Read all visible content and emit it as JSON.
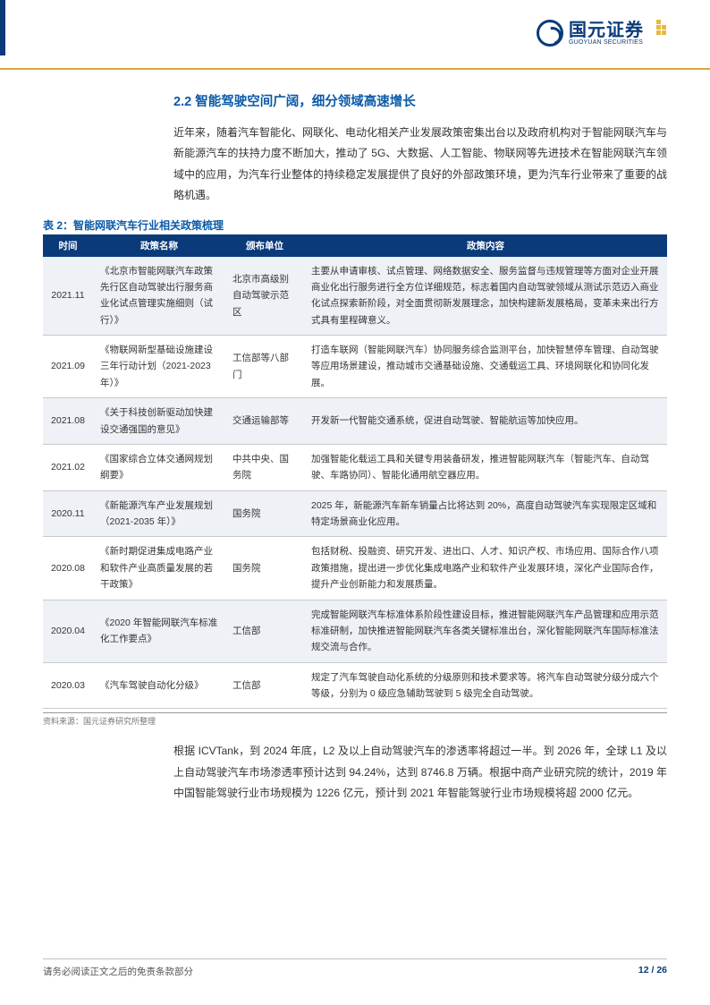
{
  "brand": {
    "cn": "国元证券",
    "en": "GUOYUAN SECURITIES"
  },
  "section": {
    "number": "2.2",
    "title": "智能驾驶空间广阔，细分领域高速增长",
    "intro": "近年来，随着汽车智能化、网联化、电动化相关产业发展政策密集出台以及政府机构对于智能网联汽车与新能源汽车的扶持力度不断加大，推动了 5G、大数据、人工智能、物联网等先进技术在智能网联汽车领域中的应用，为汽车行业整体的持续稳定发展提供了良好的外部政策环境，更为汽车行业带来了重要的战略机遇。"
  },
  "table": {
    "caption": "表 2：智能网联汽车行业相关政策梳理",
    "headers": [
      "时间",
      "政策名称",
      "颁布单位",
      "政策内容"
    ],
    "rows": [
      {
        "alt": true,
        "time": "2021.11",
        "name": "《北京市智能网联汽车政策先行区自动驾驶出行服务商业化试点管理实施细则（试行）》",
        "org": "北京市高级别自动驾驶示范区",
        "content": "主要从申请审核、试点管理、网络数据安全、服务监督与违规管理等方面对企业开展商业化出行服务进行全方位详细规范，标志着国内自动驾驶领域从测试示范迈入商业化试点探索新阶段，对全面贯彻新发展理念，加快构建新发展格局，变革未来出行方式具有里程碑意义。"
      },
      {
        "alt": false,
        "time": "2021.09",
        "name": "《物联网新型基础设施建设三年行动计划（2021-2023 年）》",
        "org": "工信部等八部门",
        "content": "打造车联网（智能网联汽车）协同服务综合监测平台，加快智慧停车管理、自动驾驶等应用场景建设，推动城市交通基础设施、交通载运工具、环境网联化和协同化发展。"
      },
      {
        "alt": true,
        "time": "2021.08",
        "name": "《关于科技创新驱动加快建设交通强国的意见》",
        "org": "交通运输部等",
        "content": "开发新一代智能交通系统，促进自动驾驶、智能航运等加快应用。"
      },
      {
        "alt": false,
        "time": "2021.02",
        "name": "《国家综合立体交通网规划纲要》",
        "org": "中共中央、国务院",
        "content": "加强智能化载运工具和关键专用装备研发，推进智能网联汽车（智能汽车、自动驾驶、车路协同）、智能化通用航空器应用。"
      },
      {
        "alt": true,
        "time": "2020.11",
        "name": "《新能源汽车产业发展规划（2021-2035 年）》",
        "org": "国务院",
        "content": "2025 年，新能源汽车新车销量占比将达到 20%，高度自动驾驶汽车实现限定区域和特定场景商业化应用。"
      },
      {
        "alt": false,
        "time": "2020.08",
        "name": "《新时期促进集成电路产业和软件产业高质量发展的若干政策》",
        "org": "国务院",
        "content": "包括财税、投融资、研究开发、进出口、人才、知识产权、市场应用、国际合作八项政策措施，提出进一步优化集成电路产业和软件产业发展环境，深化产业国际合作，提升产业创新能力和发展质量。"
      },
      {
        "alt": true,
        "time": "2020.04",
        "name": "《2020 年智能网联汽车标准化工作要点》",
        "org": "工信部",
        "content": "完成智能网联汽车标准体系阶段性建设目标，推进智能网联汽车产品管理和应用示范标准研制，加快推进智能网联汽车各类关键标准出台，深化智能网联汽车国际标准法规交流与合作。"
      },
      {
        "alt": false,
        "time": "2020.03",
        "name": "《汽车驾驶自动化分级》",
        "org": "工信部",
        "content": "规定了汽车驾驶自动化系统的分级原则和技术要求等。将汽车自动驾驶分级分成六个等级，分别为 0 级应急辅助驾驶到 5 级完全自动驾驶。"
      }
    ],
    "source": "资料来源：国元证券研究所整理"
  },
  "para2": "根据 ICVTank，到 2024 年底，L2 及以上自动驾驶汽车的渗透率将超过一半。到 2026 年，全球 L1 及以上自动驾驶汽车市场渗透率预计达到 94.24%，达到 8746.8 万辆。根据中商产业研究院的统计，2019 年中国智能驾驶行业市场规模为 1226 亿元，预计到 2021 年智能驾驶行业市场规模将超 2000 亿元。",
  "footer": {
    "disclaimer": "请务必阅读正文之后的免责条款部分",
    "page_cur": "12",
    "page_sep": " / ",
    "page_total": "26"
  },
  "colors": {
    "brand_navy": "#0a3a7a",
    "brand_blue": "#0a5aa8",
    "accent_gold": "#d9a93d",
    "row_alt": "#eef1f5"
  }
}
